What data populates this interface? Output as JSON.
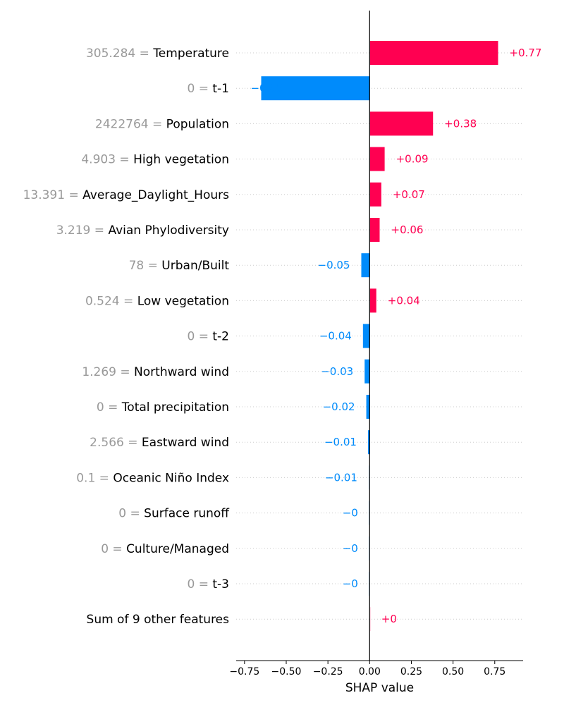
{
  "chart_data": {
    "type": "bar",
    "orientation": "horizontal",
    "xlabel": "SHAP value",
    "xlim": [
      -0.8,
      0.92
    ],
    "xticks": [
      -0.75,
      -0.5,
      -0.25,
      0.0,
      0.25,
      0.5,
      0.75
    ],
    "xtick_labels": [
      "−0.75",
      "−0.50",
      "−0.25",
      "0.00",
      "0.25",
      "0.50",
      "0.75"
    ],
    "grid": "dotted-horizontal",
    "colors": {
      "positive": "#ff0051",
      "negative": "#008bfb",
      "zero_line": "#000000"
    },
    "features": [
      {
        "value_text": "305.284",
        "name": "Temperature",
        "shap": 0.77,
        "label": "+0.77"
      },
      {
        "value_text": "0",
        "name": "t-1",
        "shap": -0.65,
        "label": "−0.65"
      },
      {
        "value_text": "2422764",
        "name": "Population",
        "shap": 0.38,
        "label": "+0.38"
      },
      {
        "value_text": "4.903",
        "name": "High vegetation",
        "shap": 0.09,
        "label": "+0.09"
      },
      {
        "value_text": "13.391",
        "name": "Average_Daylight_Hours",
        "shap": 0.07,
        "label": "+0.07"
      },
      {
        "value_text": "3.219",
        "name": "Avian Phylodiversity",
        "shap": 0.06,
        "label": "+0.06"
      },
      {
        "value_text": "78",
        "name": "Urban/Built",
        "shap": -0.05,
        "label": "−0.05"
      },
      {
        "value_text": "0.524",
        "name": "Low vegetation",
        "shap": 0.04,
        "label": "+0.04"
      },
      {
        "value_text": "0",
        "name": "t-2",
        "shap": -0.04,
        "label": "−0.04"
      },
      {
        "value_text": "1.269",
        "name": "Northward wind",
        "shap": -0.03,
        "label": "−0.03"
      },
      {
        "value_text": "0",
        "name": "Total precipitation",
        "shap": -0.02,
        "label": "−0.02"
      },
      {
        "value_text": "2.566",
        "name": "Eastward wind",
        "shap": -0.01,
        "label": "−0.01"
      },
      {
        "value_text": "0.1",
        "name": "Oceanic Niño Index",
        "shap": -0.006,
        "label": "−0.01"
      },
      {
        "value_text": "0",
        "name": "Surface runoff",
        "shap": -0.002,
        "label": "−0"
      },
      {
        "value_text": "0",
        "name": "Culture/Managed",
        "shap": -0.002,
        "label": "−0"
      },
      {
        "value_text": "0",
        "name": "t-3",
        "shap": -0.002,
        "label": "−0"
      }
    ],
    "summary_row": {
      "text": "Sum of 9 other features",
      "shap": 0.002,
      "label": "+0"
    }
  }
}
